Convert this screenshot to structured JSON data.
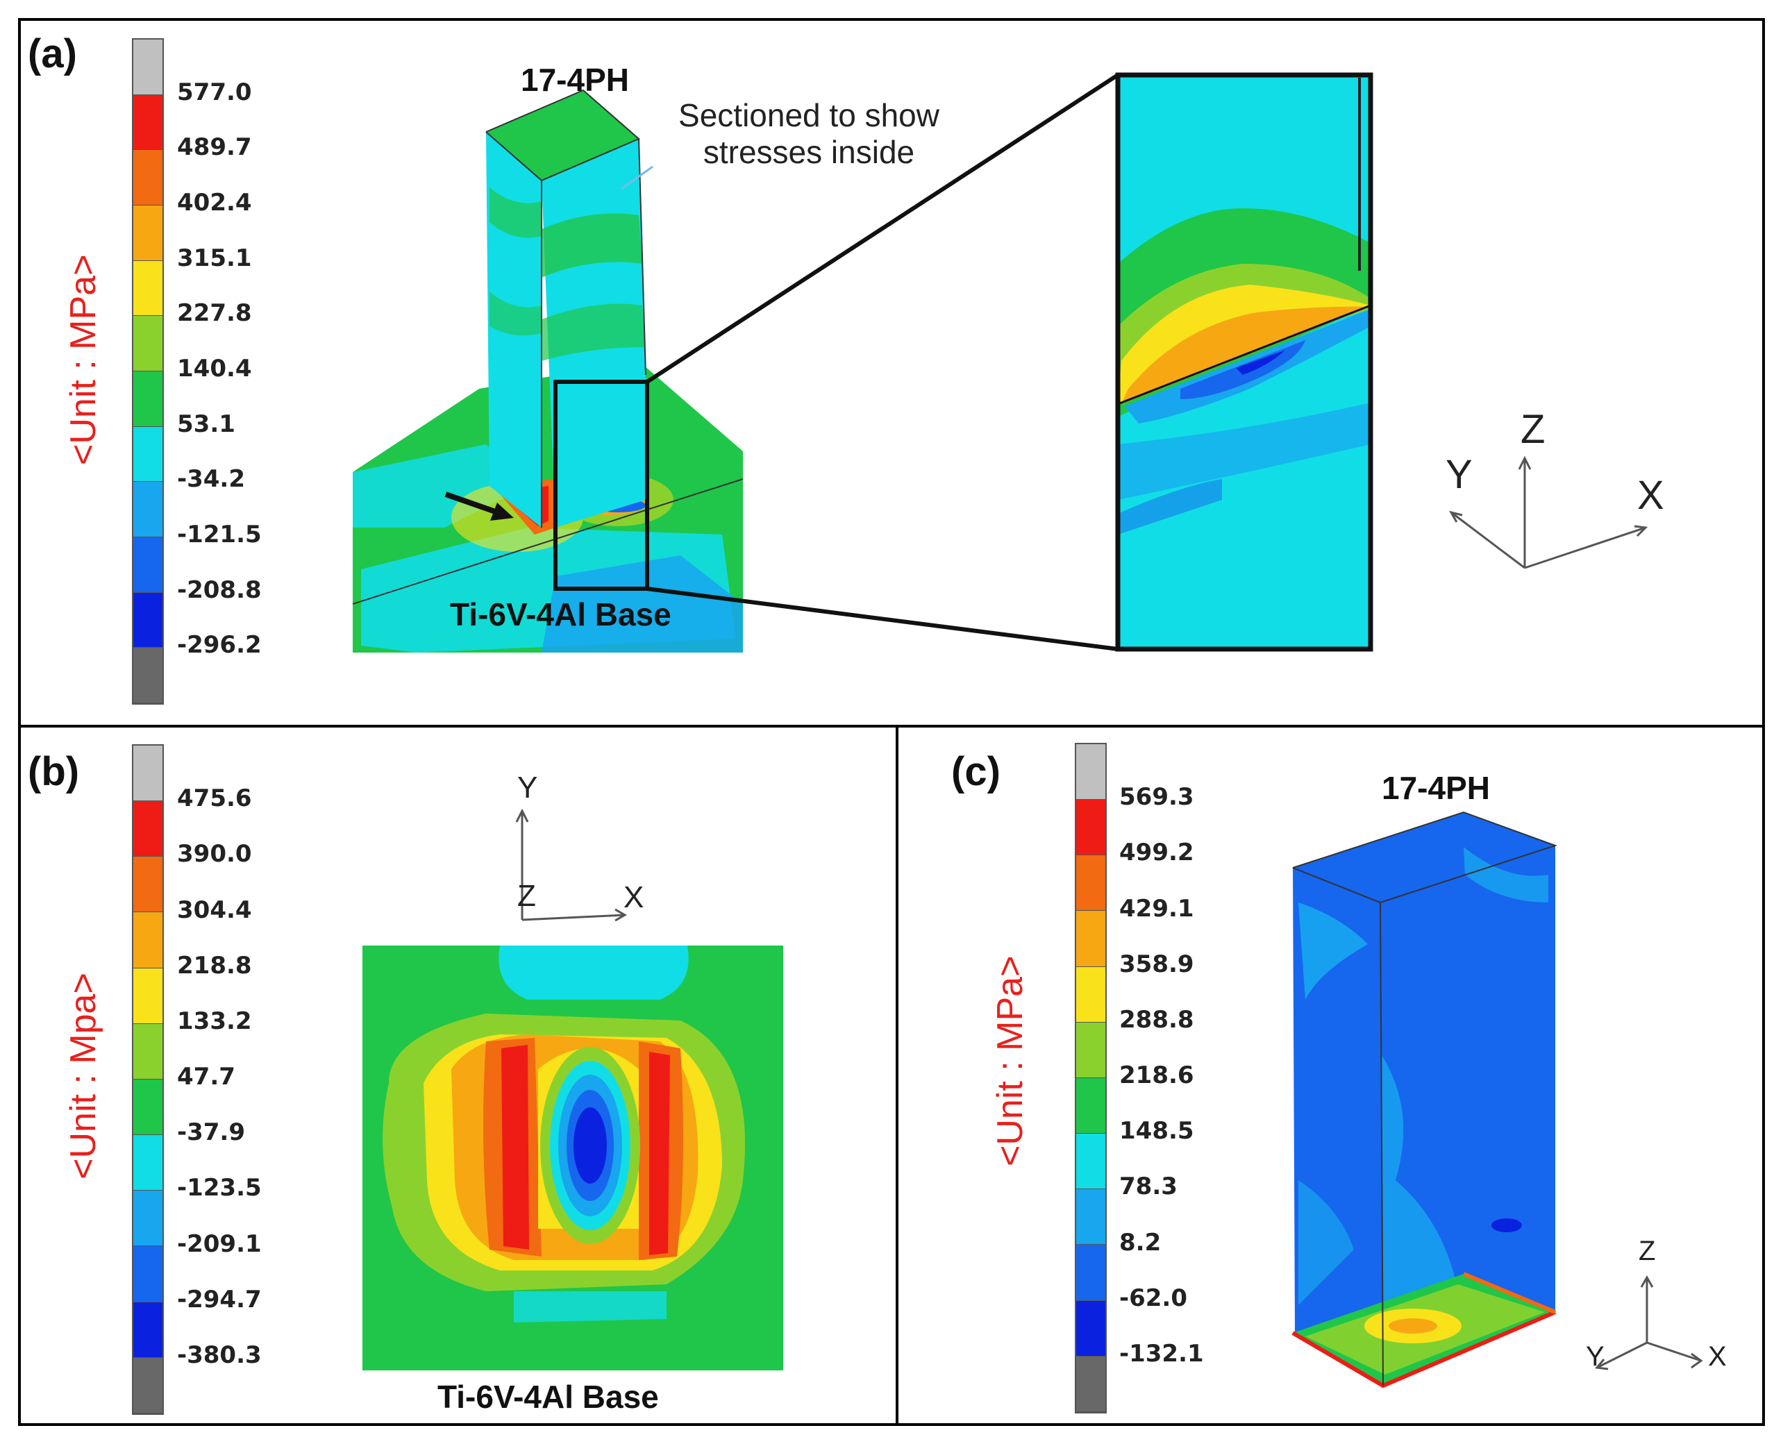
{
  "panel_a": {
    "label": "(a)",
    "unit": "<Unit : MPa>",
    "ticks": [
      "577.0",
      "489.7",
      "402.4",
      "315.1",
      "227.8",
      "140.4",
      "53.1",
      "-34.2",
      "-121.5",
      "-208.8",
      "-296.2"
    ],
    "top_label": "17-4PH",
    "base_label": "Ti-6V-4Al Base",
    "note_line1": "Sectioned to show",
    "note_line2": "stresses inside",
    "axes": {
      "y": "Y",
      "z": "Z",
      "x": "X"
    }
  },
  "panel_b": {
    "label": "(b)",
    "unit": "<Unit : Mpa>",
    "ticks": [
      "475.6",
      "390.0",
      "304.4",
      "218.8",
      "133.2",
      "47.7",
      "-37.9",
      "-123.5",
      "-209.1",
      "-294.7",
      "-380.3"
    ],
    "base_label": "Ti-6V-4Al Base",
    "axes": {
      "y": "Y",
      "z": "Z",
      "x": "X"
    }
  },
  "panel_c": {
    "label": "(c)",
    "unit": "<Unit : MPa>",
    "ticks": [
      "569.3",
      "499.2",
      "429.1",
      "358.9",
      "288.8",
      "218.6",
      "148.5",
      "78.3",
      "8.2",
      "-62.0",
      "-132.1"
    ],
    "top_label": "17-4PH",
    "axes": {
      "z": "Z",
      "y": "Y",
      "x": "X"
    }
  },
  "colors": {
    "scale": [
      "#c0c0c0",
      "#ee1c14",
      "#f26a12",
      "#f7a712",
      "#f9e21a",
      "#8bd12e",
      "#1fc64a",
      "#11dde6",
      "#18a6ef",
      "#1766ee",
      "#0a22e0",
      "#686868"
    ]
  }
}
